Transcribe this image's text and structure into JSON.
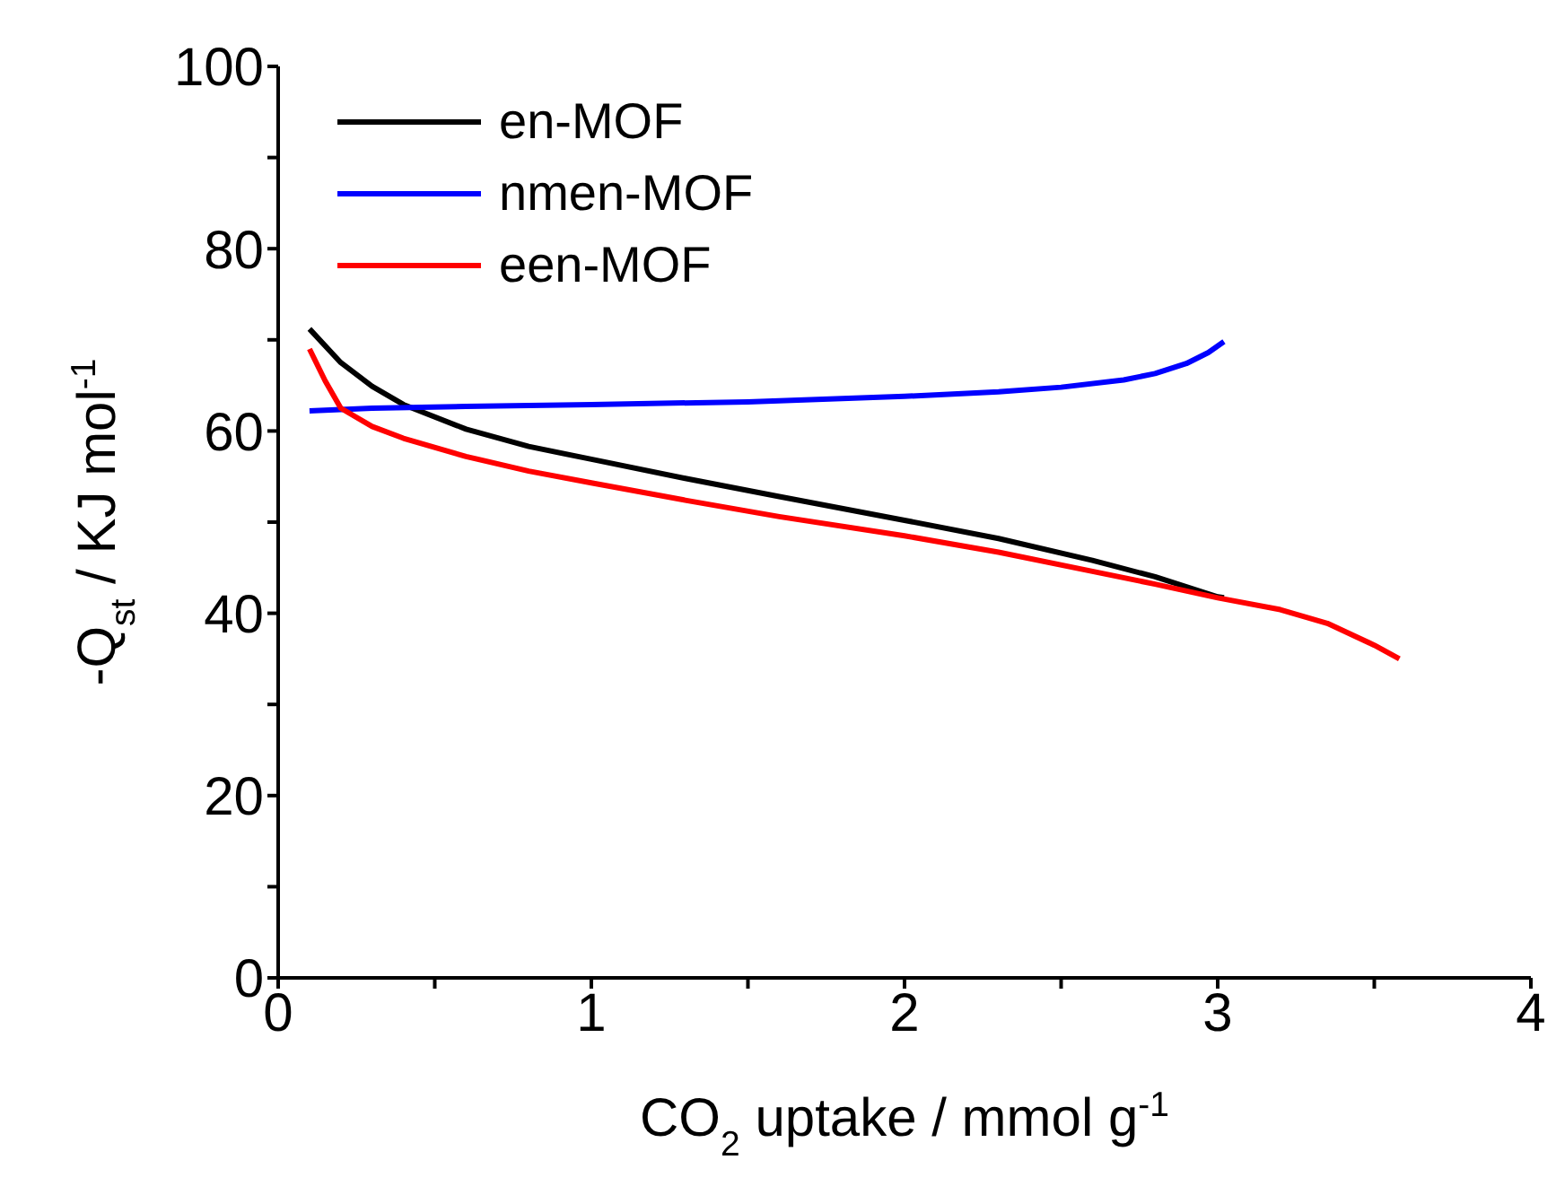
{
  "chart_data": {
    "type": "line",
    "xlabel": "CO$_{2}$ uptake / mmol g$^{-1}$",
    "ylabel": "-Q$_{st}$ / KJ mol$^{-1}$",
    "xlim": [
      0,
      4
    ],
    "ylim": [
      0,
      100
    ],
    "xticks": [
      0,
      {
        "value": 0.5,
        "label": null
      },
      1,
      {
        "value": 1.5,
        "label": null
      },
      2,
      {
        "value": 2.5,
        "label": null
      },
      3,
      {
        "value": 3.5,
        "label": null
      },
      4
    ],
    "yticks": [
      0,
      {
        "value": 10,
        "label": null
      },
      20,
      {
        "value": 30,
        "label": null
      },
      40,
      {
        "value": 50,
        "label": null
      },
      60,
      {
        "value": 70,
        "label": null
      },
      80,
      {
        "value": 90,
        "label": null
      },
      100
    ],
    "grid": false,
    "legend": "top left",
    "marker": "none",
    "line_style": "solid",
    "series": [
      {
        "name": "en-MOF",
        "color": "#000000",
        "x": [
          0.1,
          0.2,
          0.3,
          0.4,
          0.6,
          0.8,
          1,
          1.3,
          1.6,
          2,
          2.3,
          2.6,
          2.8,
          3,
          3.02
        ],
        "values": [
          71.2,
          67.5,
          64.9,
          62.9,
          60.2,
          58.3,
          56.9,
          54.8,
          52.8,
          50.2,
          48.2,
          45.8,
          44,
          41.8,
          41.7
        ]
      },
      {
        "name": "nmen-MOF",
        "color": "#0000ff",
        "x": [
          0.1,
          0.3,
          0.6,
          1,
          1.5,
          2,
          2.3,
          2.5,
          2.7,
          2.8,
          2.9,
          2.97,
          3.02
        ],
        "values": [
          62.2,
          62.5,
          62.7,
          62.9,
          63.2,
          63.8,
          64.3,
          64.8,
          65.6,
          66.3,
          67.4,
          68.6,
          69.8
        ]
      },
      {
        "name": "een-MOF",
        "color": "#ff0000",
        "x": [
          0.1,
          0.15,
          0.2,
          0.3,
          0.4,
          0.6,
          0.8,
          1,
          1.3,
          1.6,
          2,
          2.3,
          2.6,
          2.8,
          3,
          3.2,
          3.35,
          3.5,
          3.58
        ],
        "values": [
          69,
          65.5,
          62.5,
          60.5,
          59.2,
          57.2,
          55.6,
          54.3,
          52.4,
          50.6,
          48.5,
          46.7,
          44.6,
          43.2,
          41.7,
          40.4,
          38.9,
          36.5,
          35
        ]
      }
    ]
  }
}
